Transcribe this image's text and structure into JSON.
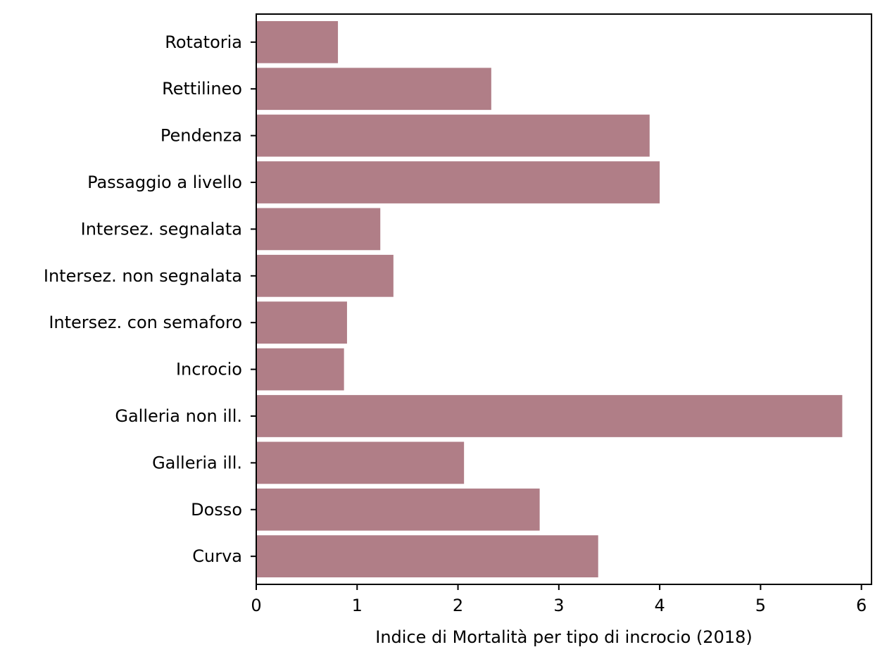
{
  "chart_data": {
    "type": "bar",
    "orientation": "horizontal",
    "categories": [
      "Curva",
      "Dosso",
      "Galleria ill.",
      "Galleria non ill.",
      "Incrocio",
      "Intersez. con semaforo",
      "Intersez. non segnalata",
      "Intersez. segnalata",
      "Passaggio a livello",
      "Pendenza",
      "Rettilineo",
      "Rotatoria"
    ],
    "values": [
      3.39,
      2.81,
      2.06,
      5.81,
      0.87,
      0.9,
      1.36,
      1.23,
      4.0,
      3.9,
      2.33,
      0.81
    ],
    "title": "",
    "xlabel": "Indice di Mortalità per tipo di incrocio (2018)",
    "ylabel": "",
    "xlim": [
      0,
      6.1
    ],
    "xticks": [
      0,
      1,
      2,
      3,
      4,
      5,
      6
    ],
    "grid": false,
    "legend": "none",
    "bar_color": "#b07e87"
  }
}
